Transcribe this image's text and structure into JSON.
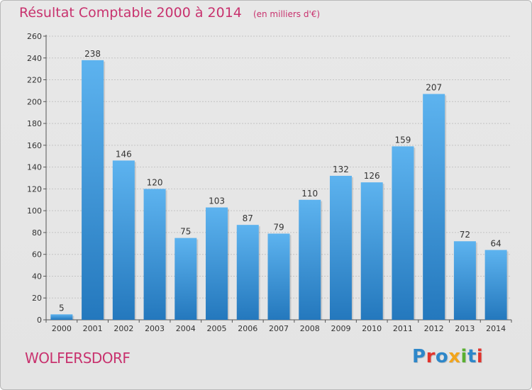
{
  "header": {
    "title": "Résultat Comptable 2000 à 2014",
    "unit": "(en milliers d'€)"
  },
  "footer": {
    "place": "WOLFERSDORF",
    "logo_letters": [
      {
        "ch": "P",
        "color": "#2e87c9"
      },
      {
        "ch": "r",
        "color": "#e2342d"
      },
      {
        "ch": "o",
        "color": "#2e87c9"
      },
      {
        "ch": "x",
        "color": "#f2a51c"
      },
      {
        "ch": "i",
        "color": "#5ab031"
      },
      {
        "ch": "t",
        "color": "#2e87c9"
      },
      {
        "ch": "i",
        "color": "#e2342d"
      }
    ]
  },
  "chart_data": {
    "type": "bar",
    "categories": [
      "2000",
      "2001",
      "2002",
      "2003",
      "2004",
      "2005",
      "2006",
      "2007",
      "2008",
      "2009",
      "2010",
      "2011",
      "2012",
      "2013",
      "2014"
    ],
    "values": [
      5,
      238,
      146,
      120,
      75,
      103,
      87,
      79,
      110,
      132,
      126,
      159,
      207,
      72,
      64
    ],
    "ylim": [
      0,
      260
    ],
    "yticks": [
      0,
      20,
      40,
      60,
      80,
      100,
      120,
      140,
      160,
      180,
      200,
      220,
      240,
      260
    ],
    "grid": true,
    "bar_color": "#4aa3e6",
    "bar_color_dark": "#2478bd"
  }
}
